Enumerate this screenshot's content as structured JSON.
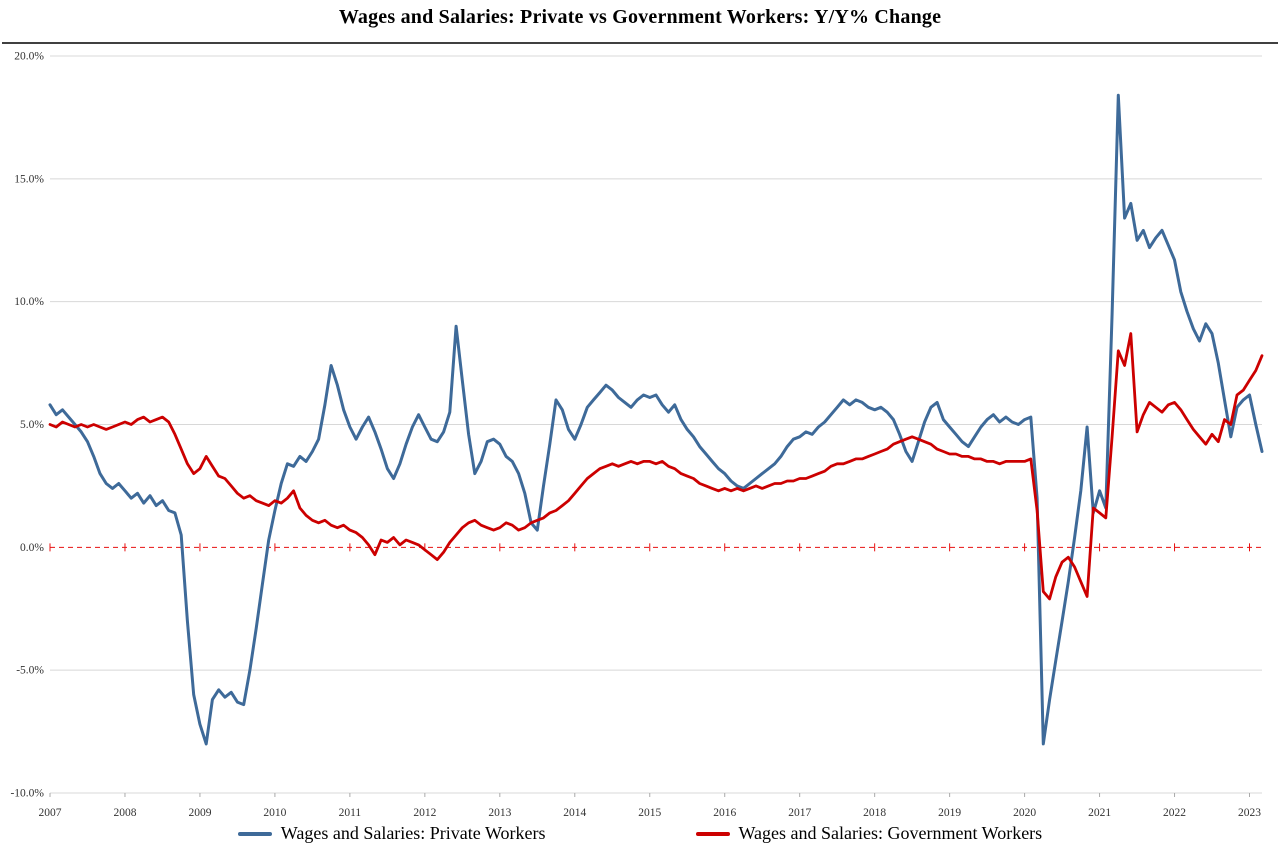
{
  "chart_data": {
    "type": "line",
    "title": "Wages and Salaries: Private vs Government Workers: Y/Y% Change",
    "x_start": {
      "year": 2007,
      "month": 1
    },
    "x_frequency": "monthly",
    "x_tick_labels": [
      "2007",
      "2008",
      "2009",
      "2010",
      "2011",
      "2012",
      "2013",
      "2014",
      "2015",
      "2016",
      "2017",
      "2018",
      "2019",
      "2020",
      "2021",
      "2022",
      "2023"
    ],
    "y_axis": {
      "min": -10,
      "max": 20,
      "step": 5,
      "tick_labels": [
        "20.0%",
        "15.0%",
        "10.0%",
        "5.0%",
        "0.0%",
        "-5.0%",
        "-10.0%"
      ]
    },
    "grid": true,
    "grid_color": "#D8D8D8",
    "top_rule_color": "#000000",
    "tick_label_color": "#333333",
    "zero_line": {
      "value": 0,
      "style": "dashed",
      "color": "#E81010"
    },
    "legend_position": "bottom",
    "series": [
      {
        "name": "Wages and Salaries: Private Workers",
        "color": "#3E6A99",
        "values": [
          5.8,
          5.4,
          5.6,
          5.3,
          5.0,
          4.7,
          4.3,
          3.7,
          3.0,
          2.6,
          2.4,
          2.6,
          2.3,
          2.0,
          2.2,
          1.8,
          2.1,
          1.7,
          1.9,
          1.5,
          1.4,
          0.5,
          -3.0,
          -6.0,
          -7.2,
          -8.0,
          -6.2,
          -5.8,
          -6.1,
          -5.9,
          -6.3,
          -6.4,
          -5.0,
          -3.3,
          -1.5,
          0.3,
          1.5,
          2.6,
          3.4,
          3.3,
          3.7,
          3.5,
          3.9,
          4.4,
          5.8,
          7.4,
          6.6,
          5.6,
          4.9,
          4.4,
          4.9,
          5.3,
          4.7,
          4.0,
          3.2,
          2.8,
          3.4,
          4.2,
          4.9,
          5.4,
          4.9,
          4.4,
          4.3,
          4.7,
          5.5,
          9.0,
          6.8,
          4.6,
          3.0,
          3.5,
          4.3,
          4.4,
          4.2,
          3.7,
          3.5,
          3.0,
          2.2,
          1.0,
          0.7,
          2.5,
          4.2,
          6.0,
          5.6,
          4.8,
          4.4,
          5.0,
          5.7,
          6.0,
          6.3,
          6.6,
          6.4,
          6.1,
          5.9,
          5.7,
          6.0,
          6.2,
          6.1,
          6.2,
          5.8,
          5.5,
          5.8,
          5.2,
          4.8,
          4.5,
          4.1,
          3.8,
          3.5,
          3.2,
          3.0,
          2.7,
          2.5,
          2.4,
          2.6,
          2.8,
          3.0,
          3.2,
          3.4,
          3.7,
          4.1,
          4.4,
          4.5,
          4.7,
          4.6,
          4.9,
          5.1,
          5.4,
          5.7,
          6.0,
          5.8,
          6.0,
          5.9,
          5.7,
          5.6,
          5.7,
          5.5,
          5.2,
          4.6,
          3.9,
          3.5,
          4.3,
          5.1,
          5.7,
          5.9,
          5.2,
          4.9,
          4.6,
          4.3,
          4.1,
          4.5,
          4.9,
          5.2,
          5.4,
          5.1,
          5.3,
          5.1,
          5.0,
          5.2,
          5.3,
          2.0,
          -8.0,
          -6.2,
          -4.6,
          -3.0,
          -1.4,
          0.4,
          2.3,
          4.9,
          1.4,
          2.3,
          1.6,
          9.5,
          18.4,
          13.4,
          14.0,
          12.5,
          12.9,
          12.2,
          12.6,
          12.9,
          12.3,
          11.7,
          10.4,
          9.6,
          8.9,
          8.4,
          9.1,
          8.7,
          7.5,
          6.0,
          4.5,
          5.7,
          6.0,
          6.2,
          5.0,
          3.9
        ]
      },
      {
        "name": "Wages and Salaries: Government Workers",
        "color": "#CC0000",
        "values": [
          5.0,
          4.9,
          5.1,
          5.0,
          4.9,
          5.0,
          4.9,
          5.0,
          4.9,
          4.8,
          4.9,
          5.0,
          5.1,
          5.0,
          5.2,
          5.3,
          5.1,
          5.2,
          5.3,
          5.1,
          4.6,
          4.0,
          3.4,
          3.0,
          3.2,
          3.7,
          3.3,
          2.9,
          2.8,
          2.5,
          2.2,
          2.0,
          2.1,
          1.9,
          1.8,
          1.7,
          1.9,
          1.8,
          2.0,
          2.3,
          1.6,
          1.3,
          1.1,
          1.0,
          1.1,
          0.9,
          0.8,
          0.9,
          0.7,
          0.6,
          0.4,
          0.1,
          -0.3,
          0.3,
          0.2,
          0.4,
          0.1,
          0.3,
          0.2,
          0.1,
          -0.1,
          -0.3,
          -0.5,
          -0.2,
          0.2,
          0.5,
          0.8,
          1.0,
          1.1,
          0.9,
          0.8,
          0.7,
          0.8,
          1.0,
          0.9,
          0.7,
          0.8,
          1.0,
          1.1,
          1.2,
          1.4,
          1.5,
          1.7,
          1.9,
          2.2,
          2.5,
          2.8,
          3.0,
          3.2,
          3.3,
          3.4,
          3.3,
          3.4,
          3.5,
          3.4,
          3.5,
          3.5,
          3.4,
          3.5,
          3.3,
          3.2,
          3.0,
          2.9,
          2.8,
          2.6,
          2.5,
          2.4,
          2.3,
          2.4,
          2.3,
          2.4,
          2.3,
          2.4,
          2.5,
          2.4,
          2.5,
          2.6,
          2.6,
          2.7,
          2.7,
          2.8,
          2.8,
          2.9,
          3.0,
          3.1,
          3.3,
          3.4,
          3.4,
          3.5,
          3.6,
          3.6,
          3.7,
          3.8,
          3.9,
          4.0,
          4.2,
          4.3,
          4.4,
          4.5,
          4.4,
          4.3,
          4.2,
          4.0,
          3.9,
          3.8,
          3.8,
          3.7,
          3.7,
          3.6,
          3.6,
          3.5,
          3.5,
          3.4,
          3.5,
          3.5,
          3.5,
          3.5,
          3.6,
          1.5,
          -1.8,
          -2.1,
          -1.2,
          -0.6,
          -0.4,
          -0.8,
          -1.4,
          -2.0,
          1.6,
          1.4,
          1.2,
          4.5,
          8.0,
          7.4,
          8.7,
          4.7,
          5.4,
          5.9,
          5.7,
          5.5,
          5.8,
          5.9,
          5.6,
          5.2,
          4.8,
          4.5,
          4.2,
          4.6,
          4.3,
          5.2,
          5.0,
          6.2,
          6.4,
          6.8,
          7.2,
          7.8
        ]
      }
    ]
  }
}
